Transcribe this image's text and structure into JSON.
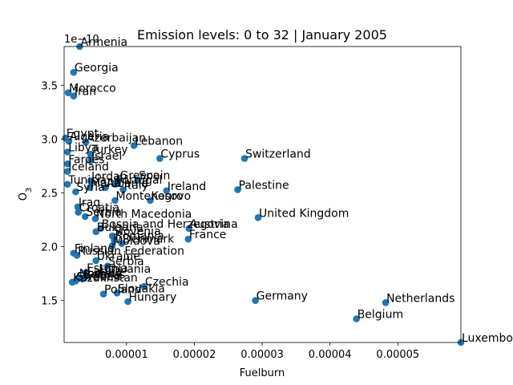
{
  "chart_data": {
    "type": "scatter",
    "title": "Emission levels: 0 to 32 | January 2005",
    "xlabel": "Fuelburn",
    "ylabel": "O",
    "ylabel_subscript": "3",
    "y_offset_text": "1e−10",
    "xlim": [
      8e-07,
      5.93e-05
    ],
    "ylim": [
      1.11,
      3.86
    ],
    "xticks": [
      1e-05,
      2e-05,
      3e-05,
      4e-05,
      5e-05
    ],
    "xtick_labels": [
      "0.00001",
      "0.00002",
      "0.00003",
      "0.00004",
      "0.00005"
    ],
    "yticks": [
      1.5,
      2.0,
      2.5,
      3.0,
      3.5
    ],
    "ytick_labels": [
      "1.5",
      "2.0",
      "2.5",
      "3.0",
      "3.5"
    ],
    "grid": false,
    "marker_color": "#1f77b4",
    "points": [
      {
        "label": "Armenia",
        "x": 3.1e-06,
        "y": 3.86
      },
      {
        "label": "Georgia",
        "x": 2.2e-06,
        "y": 3.62
      },
      {
        "label": "Morocco",
        "x": 1.4e-06,
        "y": 3.43
      },
      {
        "label": "Iran",
        "x": 2.2e-06,
        "y": 3.4
      },
      {
        "label": "Egypt",
        "x": 1e-06,
        "y": 3.01
      },
      {
        "label": "Algeria",
        "x": 1.5e-06,
        "y": 2.98
      },
      {
        "label": "Azerbaijan",
        "x": 4e-06,
        "y": 2.97
      },
      {
        "label": "Lebanon",
        "x": 1.11e-05,
        "y": 2.94
      },
      {
        "label": "Libya",
        "x": 1.3e-06,
        "y": 2.88
      },
      {
        "label": "Turkey",
        "x": 4.7e-06,
        "y": 2.86
      },
      {
        "label": "Cyprus",
        "x": 1.49e-05,
        "y": 2.82
      },
      {
        "label": "Switzerland",
        "x": 2.74e-05,
        "y": 2.82
      },
      {
        "label": "Israel",
        "x": 4.7e-06,
        "y": 2.8
      },
      {
        "label": "Faroes",
        "x": 1.3e-06,
        "y": 2.77
      },
      {
        "label": "Iceland",
        "x": 1.3e-06,
        "y": 2.7
      },
      {
        "label": "Jordan",
        "x": 4.7e-06,
        "y": 2.61
      },
      {
        "label": "Greece",
        "x": 8.9e-06,
        "y": 2.62
      },
      {
        "label": "Spain",
        "x": 1.17e-05,
        "y": 2.62
      },
      {
        "label": "Tunisia",
        "x": 1.3e-06,
        "y": 2.58
      },
      {
        "label": "Portugal",
        "x": 8.3e-06,
        "y": 2.58
      },
      {
        "label": "Malta",
        "x": 4.6e-06,
        "y": 2.55
      },
      {
        "label": "Albania",
        "x": 6.9e-06,
        "y": 2.55
      },
      {
        "label": "Syria",
        "x": 2.5e-06,
        "y": 2.51
      },
      {
        "label": "Italy",
        "x": 9.5e-06,
        "y": 2.53
      },
      {
        "label": "Ireland",
        "x": 1.59e-05,
        "y": 2.52
      },
      {
        "label": "Palestine",
        "x": 2.64e-05,
        "y": 2.53
      },
      {
        "label": "Montenegro",
        "x": 8.3e-06,
        "y": 2.43
      },
      {
        "label": "Kosovo",
        "x": 1.35e-05,
        "y": 2.43
      },
      {
        "label": "Iraq",
        "x": 2.8e-06,
        "y": 2.37
      },
      {
        "label": "Croatia",
        "x": 2.9e-06,
        "y": 2.32
      },
      {
        "label": "Serbia",
        "x": 3.9e-06,
        "y": 2.28
      },
      {
        "label": "North Macedonia",
        "x": 5.4e-06,
        "y": 2.26
      },
      {
        "label": "United Kingdom",
        "x": 2.94e-05,
        "y": 2.27
      },
      {
        "label": "Bosnia and Herzegovina",
        "x": 6.2e-06,
        "y": 2.17
      },
      {
        "label": "Austria",
        "x": 1.92e-05,
        "y": 2.17
      },
      {
        "label": "Bulgaria",
        "x": 5.5e-06,
        "y": 2.14
      },
      {
        "label": "Slovenia",
        "x": 7.9e-06,
        "y": 2.1
      },
      {
        "label": "France",
        "x": 1.91e-05,
        "y": 2.07
      },
      {
        "label": "Romania",
        "x": 8.2e-06,
        "y": 2.06
      },
      {
        "label": "Denmark",
        "x": 9.3e-06,
        "y": 2.03
      },
      {
        "label": "Moldova",
        "x": 7.9e-06,
        "y": 2.01
      },
      {
        "label": "Finland",
        "x": 2.2e-06,
        "y": 1.94
      },
      {
        "label": "Russian Federation",
        "x": 2.7e-06,
        "y": 1.92
      },
      {
        "label": "Ukraine",
        "x": 5.5e-06,
        "y": 1.87
      },
      {
        "label": "Serbia",
        "x": 7.2e-06,
        "y": 1.82
      },
      {
        "label": "Estonia",
        "x": 4e-06,
        "y": 1.76
      },
      {
        "label": "Lithuania",
        "x": 5.8e-06,
        "y": 1.75
      },
      {
        "label": "Latvia",
        "x": 4.1e-06,
        "y": 1.73
      },
      {
        "label": "Norway",
        "x": 2.9e-06,
        "y": 1.71
      },
      {
        "label": "Belarus",
        "x": 3.5e-06,
        "y": 1.7
      },
      {
        "label": "Sweden",
        "x": 2.5e-06,
        "y": 1.68
      },
      {
        "label": "Kazakhstan",
        "x": 2e-06,
        "y": 1.67
      },
      {
        "label": "Czechia",
        "x": 1.26e-05,
        "y": 1.63
      },
      {
        "label": "Slovakia",
        "x": 8.6e-06,
        "y": 1.57
      },
      {
        "label": "Poland",
        "x": 6.6e-06,
        "y": 1.56
      },
      {
        "label": "Hungary",
        "x": 1.02e-05,
        "y": 1.49
      },
      {
        "label": "Germany",
        "x": 2.9e-05,
        "y": 1.5
      },
      {
        "label": "Netherlands",
        "x": 4.82e-05,
        "y": 1.48
      },
      {
        "label": "Belgium",
        "x": 4.39e-05,
        "y": 1.33
      },
      {
        "label": "Luxembourg",
        "x": 5.93e-05,
        "y": 1.11
      }
    ]
  }
}
